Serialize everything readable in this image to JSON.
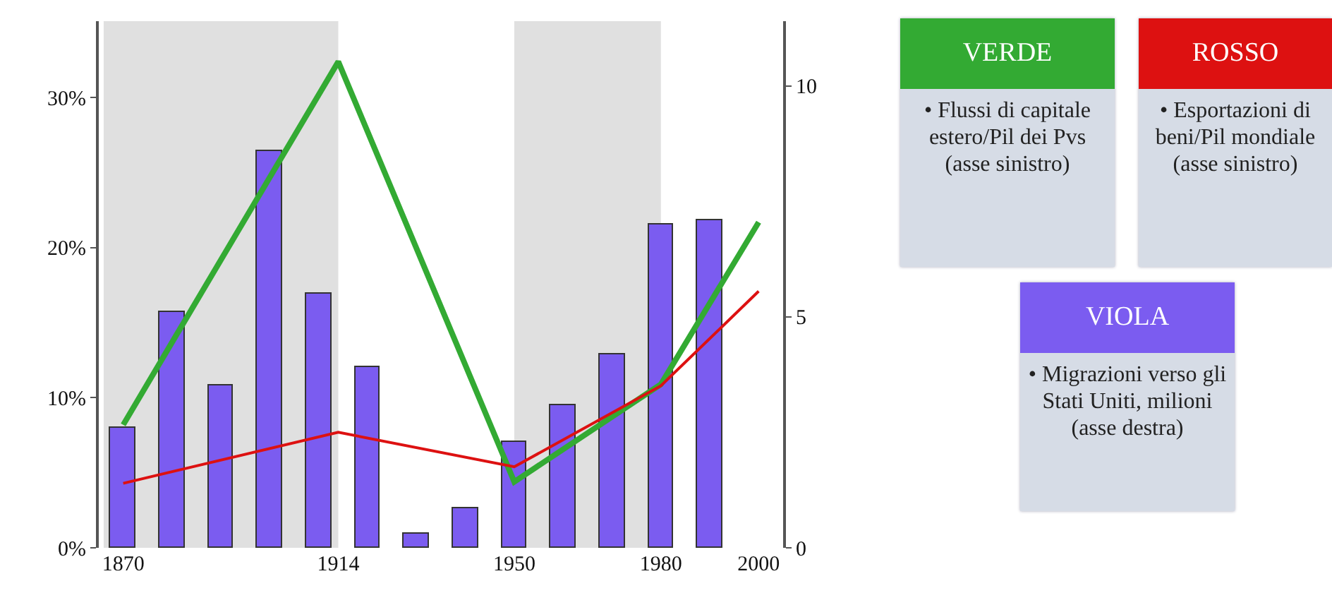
{
  "chart_data": {
    "type": "line",
    "x": [
      1870,
      1914,
      1950,
      1980,
      2000
    ],
    "series": [
      {
        "name": "VERDE",
        "color": "#33aa33",
        "values": [
          8.2,
          32.4,
          4.4,
          10.9,
          21.7
        ]
      },
      {
        "name": "ROSSO",
        "color": "#dd1111",
        "values": [
          4.3,
          7.7,
          5.4,
          10.8,
          17.1
        ]
      },
      {
        "name": "VIOLA",
        "type": "bar",
        "axis": "y2",
        "color": "#7b5cf0",
        "x": [
          1870,
          1880,
          1890,
          1900,
          1910,
          1920,
          1930,
          1940,
          1950,
          1960,
          1970,
          1980,
          1990
        ],
        "values": [
          2.6,
          5.1,
          3.5,
          8.6,
          5.5,
          3.9,
          0.3,
          0.85,
          2.3,
          3.1,
          4.2,
          7.0,
          7.1
        ]
      }
    ],
    "annotations": [
      "• Flussi di capitale estero/Pil dei Pvs (asse sinistro)",
      "• Esportazioni di beni/Pil mondiale (asse sinistro)",
      "• Migrazioni verso gli Stati Uniti, milioni (asse destra)"
    ],
    "xlim": [
      1865,
      2005
    ],
    "xticks": [
      1870,
      1914,
      1950,
      1980,
      2000
    ],
    "ylim": [
      0,
      35.1
    ],
    "yticks": [
      {
        "value": 0,
        "label": "0%"
      },
      {
        "value": 10,
        "label": "10%"
      },
      {
        "value": 20,
        "label": "20%"
      },
      {
        "value": 30,
        "label": "30%"
      }
    ],
    "y2lim": [
      0,
      11.4
    ],
    "y2ticks": [
      0,
      5,
      10
    ],
    "bands": [
      {
        "axis": "x",
        "from": 1866,
        "to": 1914,
        "color": "#e0e0e0"
      },
      {
        "axis": "x",
        "from": 1950,
        "to": 1980,
        "color": "#e0e0e0"
      }
    ],
    "grid": false,
    "marker": "none",
    "line_style": "solid"
  }
}
